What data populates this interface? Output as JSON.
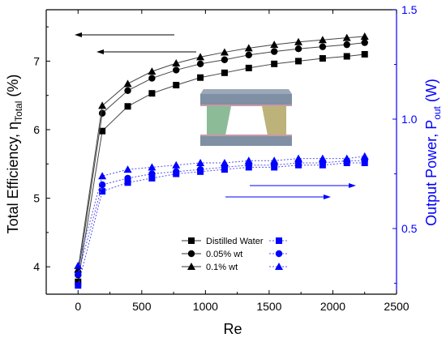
{
  "chart_data": {
    "type": "line",
    "xlabel": "Re",
    "ylabel_left": {
      "main": "Total Efficiency, η",
      "sub": "Total",
      "unit": " (%)"
    },
    "ylabel_right": {
      "main": "Output Power, P",
      "sub": "out",
      "unit": " (W)"
    },
    "xlim": [
      -250,
      2500
    ],
    "ylim_left": [
      3.6,
      7.75
    ],
    "ylim_right": [
      0.2,
      1.5
    ],
    "xticks": [
      0,
      500,
      1000,
      1500,
      2000,
      2500
    ],
    "yticks_left": [
      4,
      5,
      6,
      7
    ],
    "yticks_right": [
      0.5,
      1.0,
      1.5
    ],
    "xtick_labels": [
      "0",
      "500",
      "1000",
      "1500",
      "2000",
      "2500"
    ],
    "ytick_labels_left": [
      "4",
      "5",
      "6",
      "7"
    ],
    "ytick_labels_right": [
      "0.5",
      "1.0",
      "1.5"
    ],
    "x": [
      0,
      190,
      390,
      580,
      770,
      960,
      1150,
      1340,
      1540,
      1730,
      1920,
      2110,
      2250
    ],
    "series_left": [
      {
        "name": "Distilled Water",
        "marker": "square",
        "values": [
          3.78,
          5.98,
          6.34,
          6.53,
          6.65,
          6.76,
          6.83,
          6.9,
          6.96,
          7.0,
          7.04,
          7.07,
          7.1
        ]
      },
      {
        "name": "0.05% wt",
        "marker": "circle",
        "values": [
          3.88,
          6.24,
          6.57,
          6.75,
          6.87,
          6.96,
          7.02,
          7.09,
          7.14,
          7.18,
          7.21,
          7.24,
          7.27
        ]
      },
      {
        "name": "0.1% wt",
        "marker": "triangle",
        "values": [
          3.96,
          6.35,
          6.67,
          6.85,
          6.97,
          7.06,
          7.13,
          7.19,
          7.24,
          7.28,
          7.31,
          7.34,
          7.36
        ]
      }
    ],
    "series_right": [
      {
        "marker": "square",
        "values": [
          0.24,
          0.67,
          0.71,
          0.73,
          0.75,
          0.76,
          0.77,
          0.78,
          0.78,
          0.79,
          0.79,
          0.8,
          0.8
        ]
      },
      {
        "marker": "circle",
        "values": [
          0.29,
          0.7,
          0.73,
          0.75,
          0.76,
          0.77,
          0.78,
          0.79,
          0.79,
          0.8,
          0.8,
          0.81,
          0.81
        ]
      },
      {
        "marker": "triangle",
        "values": [
          0.33,
          0.74,
          0.77,
          0.78,
          0.79,
          0.8,
          0.8,
          0.81,
          0.81,
          0.82,
          0.82,
          0.82,
          0.83
        ]
      }
    ],
    "colors": {
      "left": "#000000",
      "right": "#0000ff",
      "right_line": "#5555ee"
    },
    "legend_position": "bottom-center",
    "grid": false
  }
}
